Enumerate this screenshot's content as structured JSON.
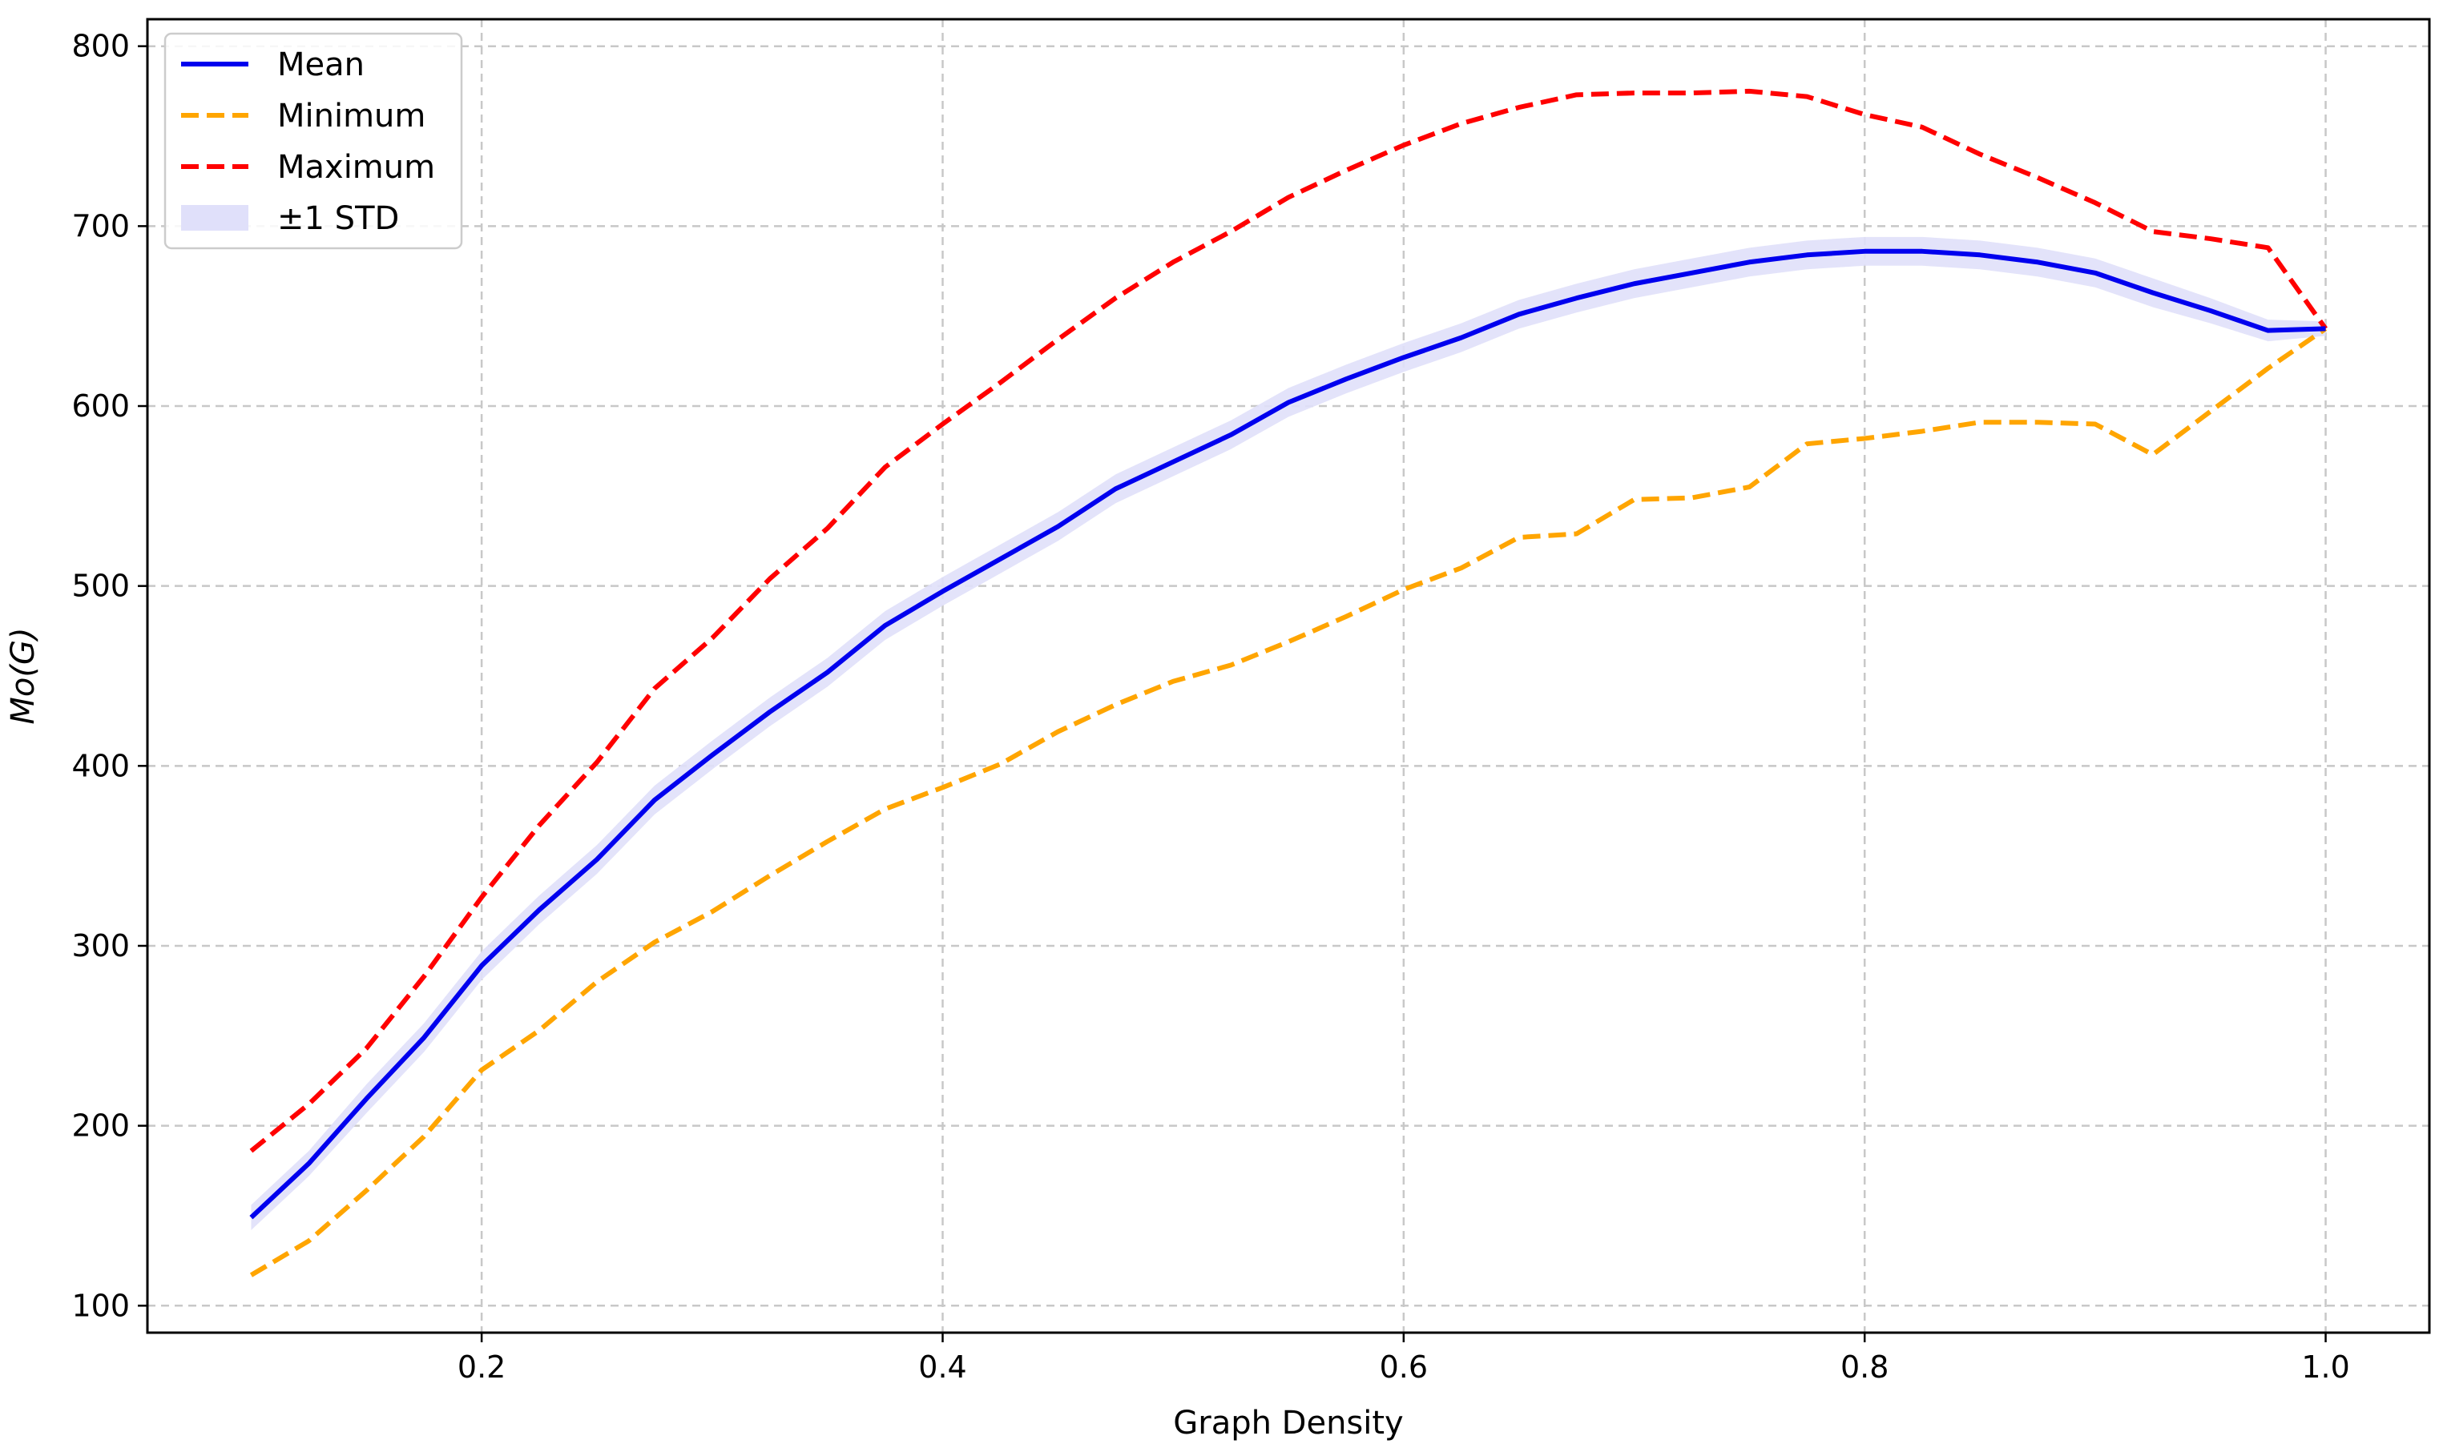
{
  "chart_data": {
    "type": "line",
    "xlabel": "Graph Density",
    "ylabel": "Mo(G)",
    "xlim": [
      0.055,
      1.045
    ],
    "ylim": [
      85,
      815
    ],
    "xticks": [
      0.2,
      0.4,
      0.6,
      0.8,
      1.0
    ],
    "xtick_labels": [
      "0.2",
      "0.4",
      "0.6",
      "0.8",
      "1.0"
    ],
    "yticks": [
      100,
      200,
      300,
      400,
      500,
      600,
      700,
      800
    ],
    "ytick_labels": [
      "100",
      "200",
      "300",
      "400",
      "500",
      "600",
      "700",
      "800"
    ],
    "grid": true,
    "legend_position": "top-left",
    "colors": {
      "mean": "#0000ee",
      "minimum": "#ffa500",
      "maximum": "#ff0000",
      "std": "#e0e0fa"
    },
    "x": [
      0.1,
      0.125,
      0.15,
      0.175,
      0.2,
      0.225,
      0.25,
      0.275,
      0.3,
      0.325,
      0.35,
      0.375,
      0.4,
      0.425,
      0.45,
      0.475,
      0.5,
      0.525,
      0.55,
      0.575,
      0.6,
      0.625,
      0.65,
      0.675,
      0.7,
      0.725,
      0.75,
      0.775,
      0.8,
      0.825,
      0.85,
      0.875,
      0.9,
      0.925,
      0.95,
      0.975,
      1.0
    ],
    "series": [
      {
        "name": "Mean",
        "style": "solid",
        "values": [
          149,
          179,
          215,
          249,
          289,
          320,
          348,
          381,
          406,
          430,
          452,
          478,
          497,
          515,
          533,
          554,
          569,
          584,
          602,
          615,
          627,
          638,
          651,
          660,
          668,
          674,
          680,
          684,
          686,
          686,
          684,
          680,
          674,
          663,
          653,
          642,
          643
        ]
      },
      {
        "name": "Minimum",
        "style": "dashed",
        "values": [
          117,
          136,
          164,
          194,
          231,
          253,
          280,
          302,
          319,
          339,
          358,
          376,
          388,
          401,
          419,
          434,
          447,
          456,
          469,
          483,
          498,
          510,
          527,
          529,
          548,
          549,
          555,
          579,
          582,
          586,
          591,
          591,
          590,
          573,
          597,
          621,
          643
        ]
      },
      {
        "name": "Maximum",
        "style": "dashed",
        "values": [
          186,
          212,
          243,
          283,
          327,
          367,
          402,
          443,
          471,
          504,
          532,
          566,
          590,
          613,
          637,
          660,
          680,
          697,
          716,
          731,
          745,
          757,
          766,
          773,
          774,
          774,
          775,
          772,
          762,
          755,
          740,
          727,
          713,
          697,
          693,
          688,
          643
        ]
      },
      {
        "name": "±1 STD",
        "style": "band",
        "half_width": [
          7,
          7,
          8,
          8,
          8,
          8,
          8,
          8,
          8,
          8,
          8,
          8,
          8,
          8,
          8,
          8,
          8,
          8,
          8,
          8,
          8,
          8,
          8,
          8,
          8,
          8,
          8,
          8,
          8,
          8,
          8,
          8,
          8,
          8,
          7,
          6,
          4
        ]
      }
    ],
    "legend": [
      "Mean",
      "Minimum",
      "Maximum",
      "±1 STD"
    ]
  }
}
